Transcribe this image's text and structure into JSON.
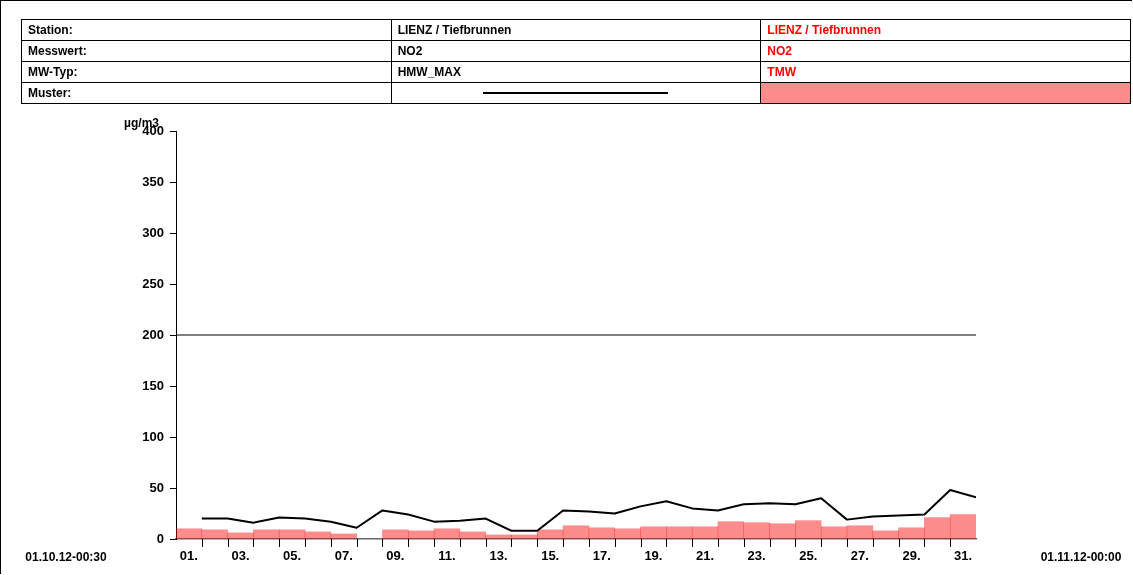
{
  "chart_data": {
    "type": "bar",
    "ylabel": "µg/m3",
    "legend": "top",
    "marker": "none",
    "grid": false,
    "xlim": [
      0,
      31
    ],
    "xticks": [
      {
        "value": 0.5,
        "label": "01."
      },
      {
        "value": 1,
        "label": null
      },
      {
        "value": 2,
        "label": null
      },
      {
        "value": 2.5,
        "label": "03."
      },
      {
        "value": 3,
        "label": null
      },
      {
        "value": 4,
        "label": null
      },
      {
        "value": 4.5,
        "label": "05."
      },
      {
        "value": 5,
        "label": null
      },
      {
        "value": 6,
        "label": null
      },
      {
        "value": 6.5,
        "label": "07."
      },
      {
        "value": 7,
        "label": null
      },
      {
        "value": 8,
        "label": null
      },
      {
        "value": 8.5,
        "label": "09."
      },
      {
        "value": 9,
        "label": null
      },
      {
        "value": 10,
        "label": null
      },
      {
        "value": 10.5,
        "label": "11."
      },
      {
        "value": 11,
        "label": null
      },
      {
        "value": 12,
        "label": null
      },
      {
        "value": 12.5,
        "label": "13."
      },
      {
        "value": 13,
        "label": null
      },
      {
        "value": 14,
        "label": null
      },
      {
        "value": 14.5,
        "label": "15."
      },
      {
        "value": 15,
        "label": null
      },
      {
        "value": 16,
        "label": null
      },
      {
        "value": 16.5,
        "label": "17."
      },
      {
        "value": 17,
        "label": null
      },
      {
        "value": 18,
        "label": null
      },
      {
        "value": 18.5,
        "label": "19."
      },
      {
        "value": 19,
        "label": null
      },
      {
        "value": 20,
        "label": null
      },
      {
        "value": 20.5,
        "label": "21."
      },
      {
        "value": 21,
        "label": null
      },
      {
        "value": 22,
        "label": null
      },
      {
        "value": 22.5,
        "label": "23."
      },
      {
        "value": 23,
        "label": null
      },
      {
        "value": 24,
        "label": null
      },
      {
        "value": 24.5,
        "label": "25."
      },
      {
        "value": 25,
        "label": null
      },
      {
        "value": 26,
        "label": null
      },
      {
        "value": 26.5,
        "label": "27."
      },
      {
        "value": 27,
        "label": null
      },
      {
        "value": 28,
        "label": null
      },
      {
        "value": 28.5,
        "label": "29."
      },
      {
        "value": 29,
        "label": null
      },
      {
        "value": 30,
        "label": null
      },
      {
        "value": 30.5,
        "label": "31."
      }
    ],
    "ylim": [
      0,
      400
    ],
    "yticks": [
      0,
      50,
      100,
      150,
      200,
      250,
      300,
      350,
      400
    ],
    "ref_lines": [
      {
        "axis": "y",
        "value": 200,
        "color": "#000000"
      }
    ],
    "annotations": [
      "Station:",
      "Messwert:",
      "MW-Typ:",
      "Muster:",
      "LIENZ / Tiefbrunnen",
      "NO2",
      "LIENZ / Tiefbrunnen",
      "NO2",
      "01.10.12-00:30",
      "01.11.12-00:00"
    ],
    "series": [
      {
        "name": "HMW_MAX",
        "type": "line",
        "color": "#000000",
        "x": [
          1,
          2,
          3,
          4,
          5,
          6,
          7,
          8,
          9,
          10,
          11,
          12,
          13,
          14,
          15,
          16,
          17,
          18,
          19,
          20,
          21,
          22,
          23,
          24,
          25,
          26,
          27,
          28,
          29,
          30,
          31
        ],
        "values": [
          20,
          20,
          16,
          21,
          20,
          17,
          11,
          28,
          24,
          17,
          18,
          20,
          8,
          8,
          28,
          27,
          25,
          32,
          37,
          30,
          28,
          34,
          35,
          34,
          40,
          19,
          22,
          23,
          24,
          48,
          41
        ]
      },
      {
        "name": "TMW",
        "color": "#ff0000",
        "x": [
          0.5,
          1.5,
          2.5,
          3.5,
          4.5,
          5.5,
          6.5,
          7.5,
          8.5,
          9.5,
          10.5,
          11.5,
          12.5,
          13.5,
          14.5,
          15.5,
          16.5,
          17.5,
          18.5,
          19.5,
          20.5,
          21.5,
          22.5,
          23.5,
          24.5,
          25.5,
          26.5,
          27.5,
          28.5,
          29.5,
          30.5
        ],
        "values": [
          10,
          9,
          6,
          9,
          9,
          7,
          5,
          null,
          9,
          8,
          10,
          7,
          4,
          4,
          9,
          13,
          11,
          10,
          12,
          12,
          12,
          17,
          16,
          15,
          18,
          12,
          13,
          8,
          11,
          21,
          24
        ]
      }
    ]
  }
}
